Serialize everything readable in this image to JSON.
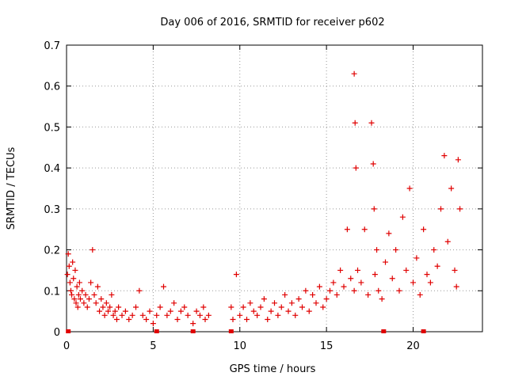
{
  "chart_data": {
    "type": "scatter",
    "title": "Day 006 of 2016, SRMTID for receiver p602",
    "xlabel": "GPS time / hours",
    "ylabel": "SRMTID / TECUs",
    "xlim": [
      0,
      24
    ],
    "ylim": [
      0,
      0.7
    ],
    "grid": true,
    "marker": "+",
    "color": "#e00000",
    "xticks": [
      0,
      5,
      10,
      15,
      20
    ],
    "xtick_labels": [
      "0",
      "5",
      "10",
      "15",
      "20"
    ],
    "yticks": [
      0,
      0.1,
      0.2,
      0.3,
      0.4,
      0.5,
      0.6,
      0.7
    ],
    "ytick_labels": [
      "0",
      "0.1",
      "0.2",
      "0.3",
      "0.4",
      "0.5",
      "0.6",
      "0.7"
    ],
    "series": [
      {
        "name": "SRMTID",
        "x": [
          0.05,
          0.1,
          0.15,
          0.2,
          0.25,
          0.3,
          0.35,
          0.4,
          0.45,
          0.5,
          0.55,
          0.6,
          0.65,
          0.7,
          0.75,
          0.8,
          0.9,
          1.0,
          1.1,
          1.2,
          1.3,
          1.4,
          1.5,
          1.6,
          1.7,
          1.8,
          1.9,
          2.0,
          2.1,
          2.2,
          2.3,
          2.4,
          2.5,
          2.6,
          2.7,
          2.8,
          2.9,
          3.0,
          3.2,
          3.4,
          3.6,
          3.8,
          4.0,
          4.2,
          4.4,
          4.6,
          4.8,
          5.0,
          5.2,
          5.4,
          5.6,
          5.8,
          6.0,
          6.2,
          6.4,
          6.6,
          6.8,
          7.0,
          7.3,
          7.5,
          7.7,
          7.9,
          8.0,
          8.2,
          9.5,
          9.6,
          9.8,
          10.0,
          10.2,
          10.4,
          10.6,
          10.8,
          11.0,
          11.2,
          11.4,
          11.6,
          11.8,
          12.0,
          12.2,
          12.4,
          12.6,
          12.8,
          13.0,
          13.2,
          13.4,
          13.6,
          13.8,
          14.0,
          14.2,
          14.4,
          14.6,
          14.8,
          15.0,
          15.2,
          15.4,
          15.6,
          15.8,
          16.0,
          16.2,
          16.4,
          16.6,
          16.6,
          16.65,
          16.7,
          16.8,
          17.0,
          17.2,
          17.4,
          17.6,
          17.7,
          17.75,
          17.8,
          17.9,
          18.0,
          18.2,
          18.4,
          18.6,
          18.8,
          19.0,
          19.2,
          19.4,
          19.6,
          19.8,
          20.0,
          20.2,
          20.4,
          20.6,
          20.8,
          21.0,
          21.2,
          21.4,
          21.6,
          21.8,
          22.0,
          22.2,
          22.4,
          22.5,
          22.6,
          22.7
        ],
        "values": [
          0.14,
          0.19,
          0.16,
          0.12,
          0.1,
          0.09,
          0.17,
          0.13,
          0.08,
          0.15,
          0.07,
          0.11,
          0.06,
          0.09,
          0.12,
          0.08,
          0.1,
          0.07,
          0.09,
          0.06,
          0.08,
          0.12,
          0.2,
          0.09,
          0.07,
          0.11,
          0.05,
          0.08,
          0.06,
          0.04,
          0.07,
          0.05,
          0.06,
          0.09,
          0.04,
          0.05,
          0.03,
          0.06,
          0.04,
          0.05,
          0.03,
          0.04,
          0.06,
          0.1,
          0.04,
          0.03,
          0.05,
          0.02,
          0.04,
          0.06,
          0.11,
          0.04,
          0.05,
          0.07,
          0.03,
          0.05,
          0.06,
          0.04,
          0.02,
          0.05,
          0.04,
          0.06,
          0.03,
          0.04,
          0.06,
          0.03,
          0.14,
          0.04,
          0.06,
          0.03,
          0.07,
          0.05,
          0.04,
          0.06,
          0.08,
          0.03,
          0.05,
          0.07,
          0.04,
          0.06,
          0.09,
          0.05,
          0.07,
          0.04,
          0.08,
          0.06,
          0.1,
          0.05,
          0.09,
          0.07,
          0.11,
          0.06,
          0.08,
          0.1,
          0.12,
          0.09,
          0.15,
          0.11,
          0.25,
          0.13,
          0.1,
          0.63,
          0.51,
          0.4,
          0.15,
          0.12,
          0.25,
          0.09,
          0.51,
          0.41,
          0.3,
          0.14,
          0.2,
          0.1,
          0.08,
          0.17,
          0.24,
          0.13,
          0.2,
          0.1,
          0.28,
          0.15,
          0.35,
          0.12,
          0.18,
          0.09,
          0.25,
          0.14,
          0.12,
          0.2,
          0.16,
          0.3,
          0.43,
          0.22,
          0.35,
          0.15,
          0.11,
          0.42,
          0.3
        ]
      }
    ],
    "bottom_markers_x": [
      0.1,
      5.2,
      7.3,
      9.5,
      18.3,
      20.6
    ]
  }
}
